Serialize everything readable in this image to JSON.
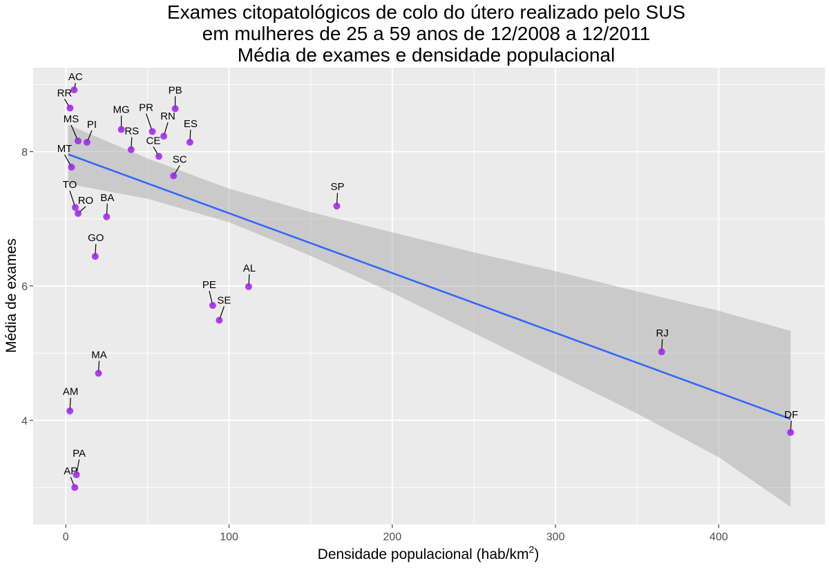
{
  "chart_data": {
    "type": "scatter",
    "title": [
      "Exames citopatológicos de colo do útero realizado pelo SUS",
      "em mulheres de 25 a 59 anos de 12/2008 a 12/2011",
      "Média de exames e densidade populacional"
    ],
    "xlabel": "Densidade populacional (hab/km",
    "xlabel_superscript": "2",
    "xlabel_suffix": ")",
    "ylabel": "Média de exames",
    "xlim": [
      -20,
      465
    ],
    "ylim": [
      2.45,
      9.25
    ],
    "x_ticks": [
      0,
      100,
      200,
      300,
      400
    ],
    "y_ticks": [
      4,
      6,
      8
    ],
    "grid": true,
    "point_color": "#a020f0",
    "line_color": "#3366ff",
    "band_color": "#999999",
    "panel_color": "#ebebeb",
    "points": [
      {
        "label": "AC",
        "x": 5.1,
        "y": 8.92
      },
      {
        "label": "RR",
        "x": 2.6,
        "y": 8.65
      },
      {
        "label": "PB",
        "x": 67.0,
        "y": 8.64
      },
      {
        "label": "MG",
        "x": 34.0,
        "y": 8.33
      },
      {
        "label": "PR",
        "x": 53.0,
        "y": 8.3
      },
      {
        "label": "RN",
        "x": 60.0,
        "y": 8.23
      },
      {
        "label": "MS",
        "x": 7.5,
        "y": 8.16
      },
      {
        "label": "PI",
        "x": 13.0,
        "y": 8.14
      },
      {
        "label": "ES",
        "x": 76.0,
        "y": 8.14
      },
      {
        "label": "RS",
        "x": 40.0,
        "y": 8.03
      },
      {
        "label": "CE",
        "x": 57.0,
        "y": 7.93
      },
      {
        "label": "MT",
        "x": 3.5,
        "y": 7.77
      },
      {
        "label": "SC",
        "x": 66.0,
        "y": 7.64
      },
      {
        "label": "SP",
        "x": 166.0,
        "y": 7.19
      },
      {
        "label": "TO",
        "x": 5.8,
        "y": 7.17
      },
      {
        "label": "RO",
        "x": 7.5,
        "y": 7.08
      },
      {
        "label": "BA",
        "x": 25.0,
        "y": 7.03
      },
      {
        "label": "GO",
        "x": 18.0,
        "y": 6.44
      },
      {
        "label": "AL",
        "x": 112.0,
        "y": 5.99
      },
      {
        "label": "PE",
        "x": 90.0,
        "y": 5.71
      },
      {
        "label": "SE",
        "x": 94.0,
        "y": 5.49
      },
      {
        "label": "RJ",
        "x": 365.0,
        "y": 5.02
      },
      {
        "label": "MA",
        "x": 20.0,
        "y": 4.7
      },
      {
        "label": "AM",
        "x": 2.5,
        "y": 4.14
      },
      {
        "label": "DF",
        "x": 444.0,
        "y": 3.82
      },
      {
        "label": "PA",
        "x": 6.5,
        "y": 3.19
      },
      {
        "label": "AP",
        "x": 5.5,
        "y": 3.0
      }
    ],
    "trend_line": {
      "x": [
        1.5,
        444.0
      ],
      "y": [
        7.96,
        4.02
      ]
    },
    "confidence_band": [
      {
        "x": 1.5,
        "low": 7.52,
        "high": 8.4
      },
      {
        "x": 50,
        "low": 7.3,
        "high": 7.9
      },
      {
        "x": 100,
        "low": 6.95,
        "high": 7.45
      },
      {
        "x": 150,
        "low": 6.45,
        "high": 7.1
      },
      {
        "x": 200,
        "low": 5.9,
        "high": 6.8
      },
      {
        "x": 250,
        "low": 5.3,
        "high": 6.5
      },
      {
        "x": 300,
        "low": 4.7,
        "high": 6.22
      },
      {
        "x": 350,
        "low": 4.1,
        "high": 5.92
      },
      {
        "x": 400,
        "low": 3.45,
        "high": 5.63
      },
      {
        "x": 444.0,
        "low": 2.71,
        "high": 5.33
      }
    ]
  }
}
